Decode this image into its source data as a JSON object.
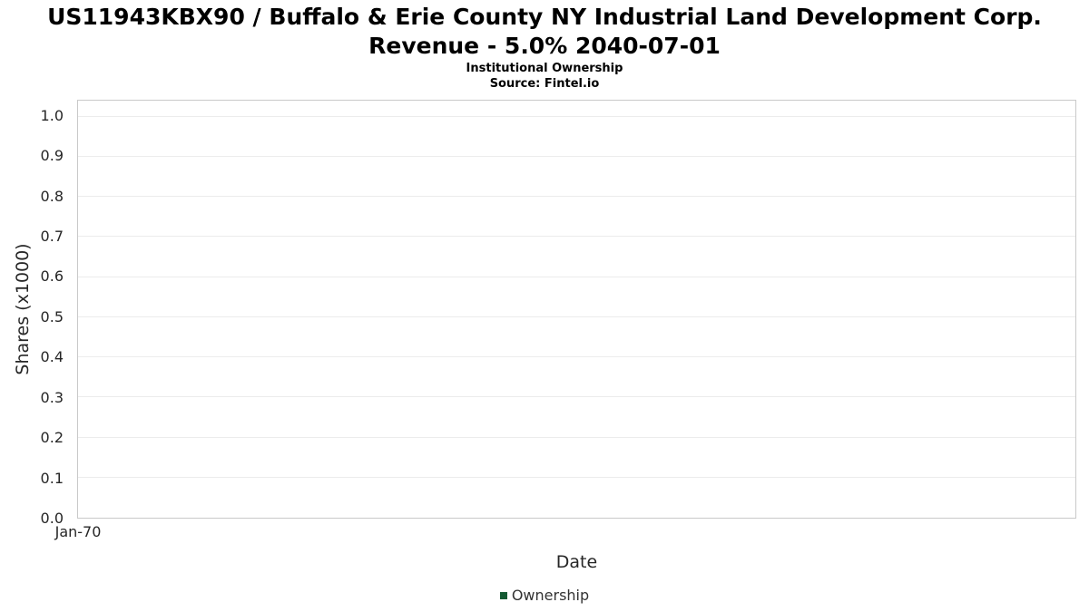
{
  "chart_data": {
    "type": "line",
    "title": "US11943KBX90 / Buffalo & Erie County NY Industrial Land Development Corp. Revenue - 5.0% 2040-07-01",
    "subtitle": "Institutional Ownership",
    "source": "Source: Fintel.io",
    "xlabel": "Date",
    "ylabel": "Shares (x1000)",
    "ylim": [
      0,
      1.04
    ],
    "yticks": [
      0.0,
      0.1,
      0.2,
      0.3,
      0.4,
      0.5,
      0.6,
      0.7,
      0.8,
      0.9,
      1.0
    ],
    "xticks": [
      "Jan-70"
    ],
    "grid": "horizontal",
    "legend_position": "bottom-center",
    "series": [
      {
        "name": "Ownership",
        "color": "#145a32",
        "x": [],
        "y": []
      }
    ]
  }
}
